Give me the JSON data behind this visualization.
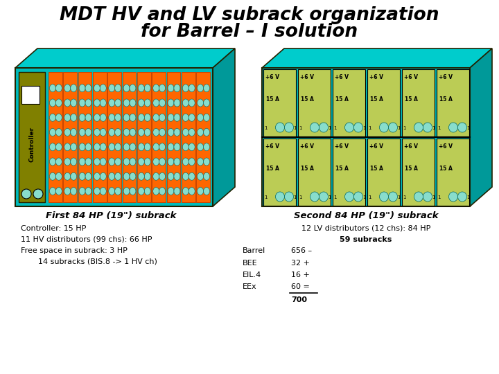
{
  "title_line1": "MDT HV and LV subrack organization",
  "title_line2": "for Barrel – I solution",
  "bg_color": "#ffffff",
  "teal": "#00BBBB",
  "teal_dark": "#009999",
  "teal_top": "#00CCCC",
  "orange": "#FF6600",
  "orange_dark": "#CC4400",
  "olive": "#808000",
  "lv_bg": "#BBCC55",
  "cyan_cell": "#88DDCC",
  "dark_outline": "#222200",
  "left_label1": "First 84 HP (19\") subrack",
  "left_label2": "Controller: 15 HP",
  "left_label3": "11 HV distributors (99 chs): 66 HP",
  "left_label4": "Free space in subrack: 3 HP",
  "left_label5": "14 subracks (BIS.8 -> 1 HV ch)",
  "right_label1": "Second 84 HP (19\") subrack",
  "right_label2": "12 LV distributors (12 chs): 84 HP",
  "right_label3": "59 subracks",
  "barrel_label": "Barrel",
  "barrel_val": "656 –",
  "bee_label": "BEE",
  "bee_val": "32 +",
  "eil_label": "EIL.4",
  "eil_val": "16 +",
  "eex_label": "EEx",
  "eex_val": "60 =",
  "total_val": "700"
}
